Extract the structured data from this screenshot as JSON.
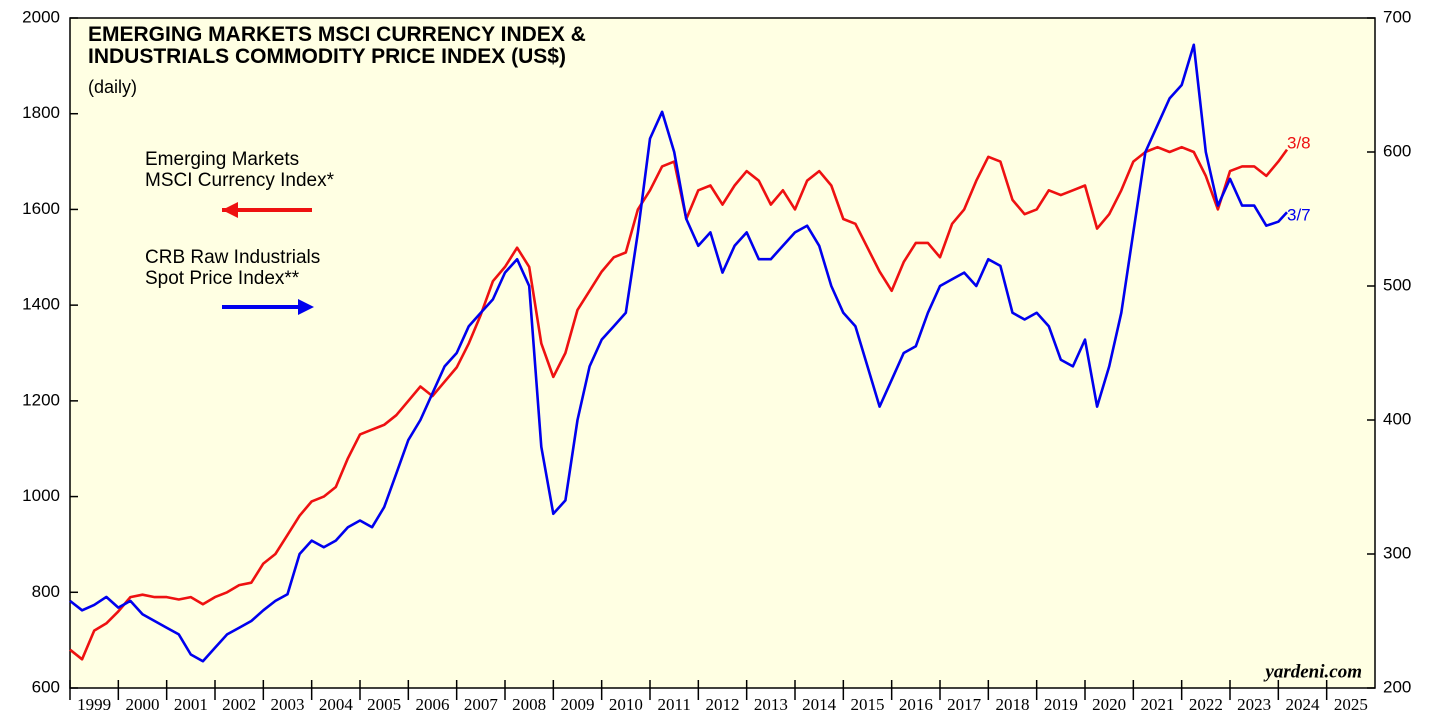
{
  "chart_data": {
    "type": "line",
    "title": "EMERGING MARKETS MSCI CURRENCY INDEX &\nINDUSTRIALS COMMODITY PRICE INDEX (US$)",
    "subtitle": "(daily)",
    "x": [
      1999,
      1999.25,
      1999.5,
      1999.75,
      2000,
      2000.25,
      2000.5,
      2000.75,
      2001,
      2001.25,
      2001.5,
      2001.75,
      2002,
      2002.25,
      2002.5,
      2002.75,
      2003,
      2003.25,
      2003.5,
      2003.75,
      2004,
      2004.25,
      2004.5,
      2004.75,
      2005,
      2005.25,
      2005.5,
      2005.75,
      2006,
      2006.25,
      2006.5,
      2006.75,
      2007,
      2007.25,
      2007.5,
      2007.75,
      2008,
      2008.25,
      2008.5,
      2008.75,
      2009,
      2009.25,
      2009.5,
      2009.75,
      2010,
      2010.25,
      2010.5,
      2010.75,
      2011,
      2011.25,
      2011.5,
      2011.75,
      2012,
      2012.25,
      2012.5,
      2012.75,
      2013,
      2013.25,
      2013.5,
      2013.75,
      2014,
      2014.25,
      2014.5,
      2014.75,
      2015,
      2015.25,
      2015.5,
      2015.75,
      2016,
      2016.25,
      2016.5,
      2016.75,
      2017,
      2017.25,
      2017.5,
      2017.75,
      2018,
      2018.25,
      2018.5,
      2018.75,
      2019,
      2019.25,
      2019.5,
      2019.75,
      2020,
      2020.25,
      2020.5,
      2020.75,
      2021,
      2021.25,
      2021.5,
      2021.75,
      2022,
      2022.25,
      2022.5,
      2022.75,
      2023,
      2023.25,
      2023.5,
      2023.75,
      2024,
      2024.18
    ],
    "series": [
      {
        "name": "Emerging Markets\nMSCI Currency Index*",
        "color": "#ee1111",
        "axis": "y",
        "values": [
          680,
          660,
          720,
          735,
          760,
          790,
          795,
          790,
          790,
          785,
          790,
          775,
          790,
          800,
          815,
          820,
          860,
          880,
          920,
          960,
          990,
          1000,
          1020,
          1080,
          1130,
          1140,
          1150,
          1170,
          1200,
          1230,
          1210,
          1240,
          1270,
          1320,
          1380,
          1450,
          1480,
          1520,
          1480,
          1320,
          1250,
          1300,
          1390,
          1430,
          1470,
          1500,
          1510,
          1600,
          1640,
          1690,
          1700,
          1580,
          1640,
          1650,
          1610,
          1650,
          1680,
          1660,
          1610,
          1640,
          1600,
          1660,
          1680,
          1650,
          1580,
          1570,
          1520,
          1470,
          1430,
          1490,
          1530,
          1530,
          1500,
          1570,
          1600,
          1660,
          1710,
          1700,
          1620,
          1590,
          1600,
          1640,
          1630,
          1640,
          1650,
          1560,
          1590,
          1640,
          1700,
          1720,
          1730,
          1720,
          1730,
          1720,
          1670,
          1600,
          1680,
          1690,
          1690,
          1670,
          1700,
          1725
        ]
      },
      {
        "name": "CRB Raw Industrials\nSpot Price Index**",
        "color": "#0000ee",
        "axis": "y2",
        "values": [
          265,
          258,
          262,
          268,
          260,
          265,
          255,
          250,
          245,
          240,
          225,
          220,
          230,
          240,
          245,
          250,
          258,
          265,
          270,
          300,
          310,
          305,
          310,
          320,
          325,
          320,
          335,
          360,
          385,
          400,
          420,
          440,
          450,
          470,
          480,
          490,
          510,
          520,
          500,
          380,
          330,
          340,
          400,
          440,
          460,
          470,
          480,
          540,
          610,
          630,
          600,
          550,
          530,
          540,
          510,
          530,
          540,
          520,
          520,
          530,
          540,
          545,
          530,
          500,
          480,
          470,
          440,
          410,
          430,
          450,
          455,
          480,
          500,
          505,
          510,
          500,
          520,
          515,
          480,
          475,
          480,
          470,
          445,
          440,
          460,
          410,
          440,
          480,
          540,
          600,
          620,
          640,
          650,
          680,
          600,
          560,
          580,
          560,
          560,
          545,
          548,
          555
        ]
      }
    ],
    "xlim": [
      1999,
      2026
    ],
    "xticks": [
      {
        "value": 1999,
        "label": "1999"
      },
      {
        "value": 2000,
        "label": "2000"
      },
      {
        "value": 2001,
        "label": "2001"
      },
      {
        "value": 2002,
        "label": "2002"
      },
      {
        "value": 2003,
        "label": "2003"
      },
      {
        "value": 2004,
        "label": "2004"
      },
      {
        "value": 2005,
        "label": "2005"
      },
      {
        "value": 2006,
        "label": "2006"
      },
      {
        "value": 2007,
        "label": "2007"
      },
      {
        "value": 2008,
        "label": "2008"
      },
      {
        "value": 2009,
        "label": "2009"
      },
      {
        "value": 2010,
        "label": "2010"
      },
      {
        "value": 2011,
        "label": "2011"
      },
      {
        "value": 2012,
        "label": "2012"
      },
      {
        "value": 2013,
        "label": "2013"
      },
      {
        "value": 2014,
        "label": "2014"
      },
      {
        "value": 2015,
        "label": "2015"
      },
      {
        "value": 2016,
        "label": "2016"
      },
      {
        "value": 2017,
        "label": "2017"
      },
      {
        "value": 2018,
        "label": "2018"
      },
      {
        "value": 2019,
        "label": "2019"
      },
      {
        "value": 2020,
        "label": "2020"
      },
      {
        "value": 2021,
        "label": "2021"
      },
      {
        "value": 2022,
        "label": "2022"
      },
      {
        "value": 2023,
        "label": "2023"
      },
      {
        "value": 2024,
        "label": "2024"
      },
      {
        "value": 2025,
        "label": "2025"
      }
    ],
    "ylim": [
      600,
      2000
    ],
    "yticks": [
      600,
      800,
      1000,
      1200,
      1400,
      1600,
      1800,
      2000
    ],
    "y2lim": [
      200,
      700
    ],
    "y2ticks": [
      200,
      300,
      400,
      500,
      600,
      700
    ],
    "annotations": [
      "3/8",
      "3/7",
      "yardeni.com"
    ]
  }
}
